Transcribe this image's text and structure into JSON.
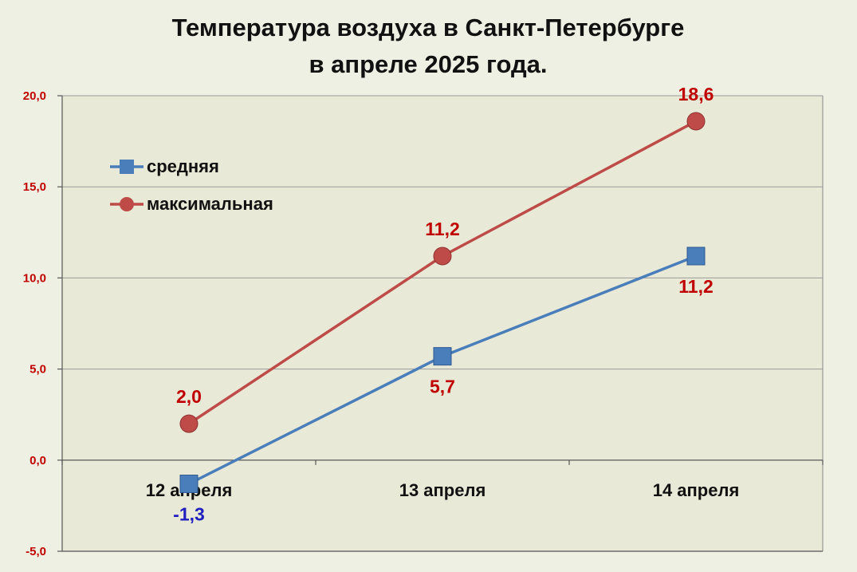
{
  "chart_data": {
    "type": "line",
    "title_lines": [
      "Температура воздуха в Санкт-Петербурге",
      "в апреле 2025 года."
    ],
    "categories": [
      "12 апреля",
      "13 апреля",
      "14 апреля"
    ],
    "ylim": [
      -5,
      20
    ],
    "yticks": [
      -5,
      0,
      5,
      10,
      15,
      20
    ],
    "ytick_labels": [
      "-5,0",
      "0,0",
      "5,0",
      "10,0",
      "15,0",
      "20,0"
    ],
    "grid": true,
    "legend_position": "top-left",
    "series": [
      {
        "name": "средняя",
        "marker": "square",
        "color": "#4a7ebb",
        "values": [
          -1.3,
          5.7,
          11.2
        ],
        "labels": [
          "-1,3",
          "5,7",
          "11,2"
        ],
        "label_colors": [
          "#1f1fbf",
          "#c00000",
          "#c00000"
        ],
        "label_positions": [
          "below",
          "below",
          "below"
        ]
      },
      {
        "name": "максимальная",
        "marker": "circle",
        "color": "#be4b48",
        "values": [
          2.0,
          11.2,
          18.6
        ],
        "labels": [
          "2,0",
          "11,2",
          "18,6"
        ],
        "label_colors": [
          "#c00000",
          "#c00000",
          "#c00000"
        ],
        "label_positions": [
          "above",
          "above",
          "above"
        ]
      }
    ]
  }
}
